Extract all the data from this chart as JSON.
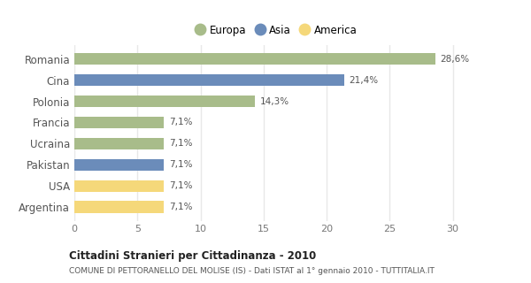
{
  "categories": [
    "Romania",
    "Cina",
    "Polonia",
    "Francia",
    "Ucraina",
    "Pakistan",
    "USA",
    "Argentina"
  ],
  "values": [
    28.6,
    21.4,
    14.3,
    7.1,
    7.1,
    7.1,
    7.1,
    7.1
  ],
  "labels": [
    "28,6%",
    "21,4%",
    "14,3%",
    "7,1%",
    "7,1%",
    "7,1%",
    "7,1%",
    "7,1%"
  ],
  "colors": [
    "#a8bc8a",
    "#6b8cba",
    "#a8bc8a",
    "#a8bc8a",
    "#a8bc8a",
    "#6b8cba",
    "#f5d87a",
    "#f5d87a"
  ],
  "legend": [
    {
      "label": "Europa",
      "color": "#a8bc8a"
    },
    {
      "label": "Asia",
      "color": "#6b8cba"
    },
    {
      "label": "America",
      "color": "#f5d87a"
    }
  ],
  "xlim": [
    0,
    32
  ],
  "xticks": [
    0,
    5,
    10,
    15,
    20,
    25,
    30
  ],
  "title": "Cittadini Stranieri per Cittadinanza - 2010",
  "subtitle": "COMUNE DI PETTORANELLO DEL MOLISE (IS) - Dati ISTAT al 1° gennaio 2010 - TUTTITALIA.IT",
  "background_color": "#ffffff",
  "grid_color": "#e8e8e8",
  "bar_height": 0.55
}
